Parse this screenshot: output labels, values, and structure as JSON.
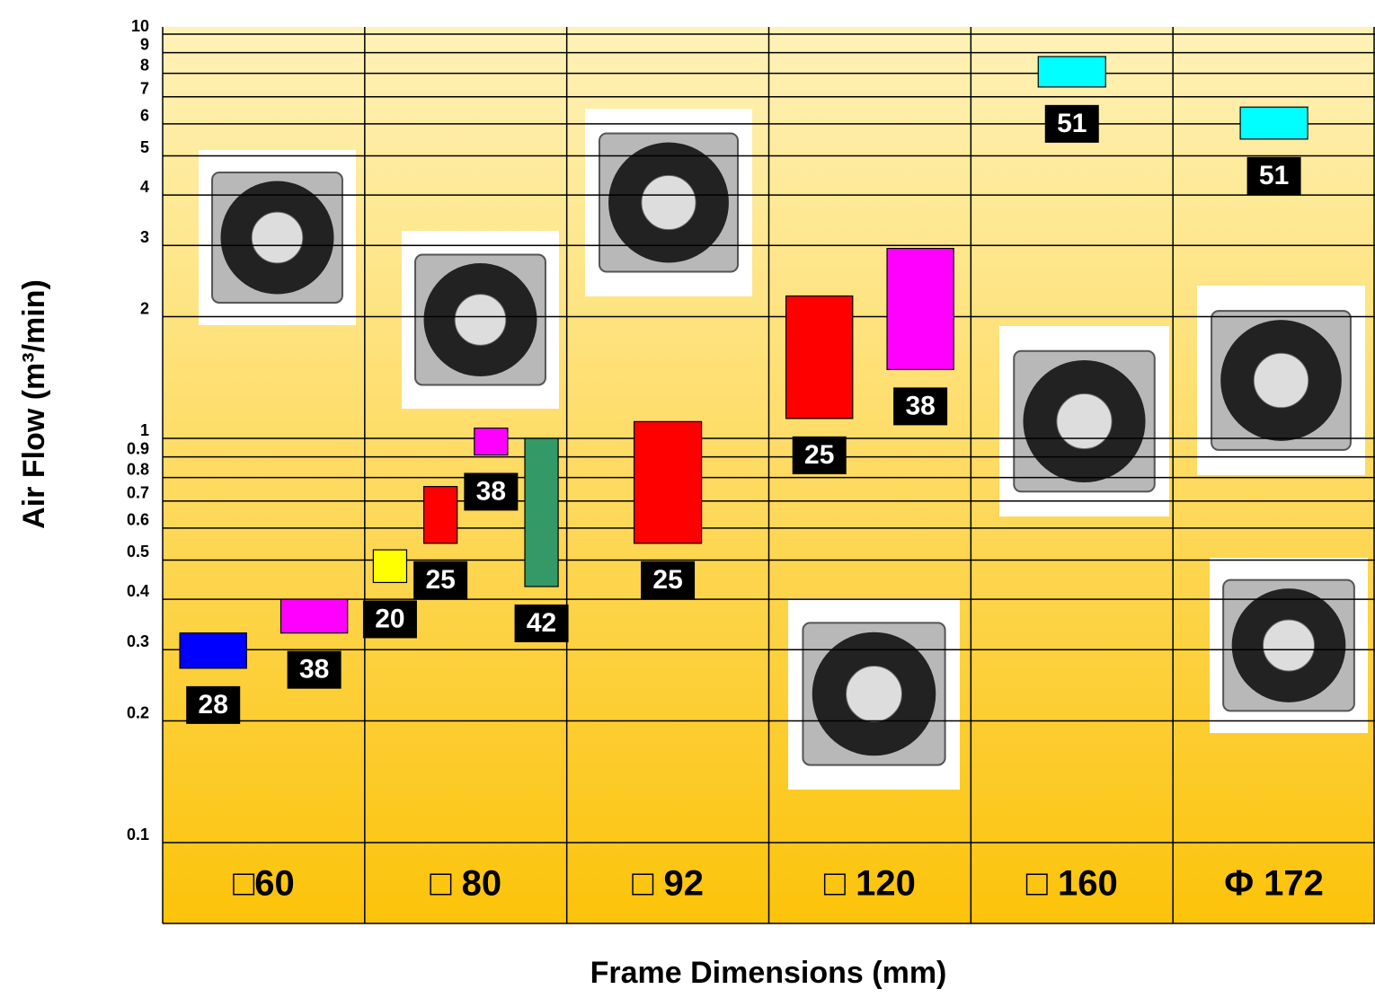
{
  "chart_data": {
    "type": "range-bar",
    "y_label": "Air Flow (m³/min)",
    "x_label": "Frame Dimensions (mm)",
    "log_scale": true,
    "grid": true,
    "ylim": [
      0.1,
      10
    ],
    "yticks": [
      0.1,
      0.2,
      0.3,
      0.4,
      0.5,
      0.6,
      0.7,
      0.8,
      0.9,
      1,
      2,
      3,
      4,
      5,
      6,
      7,
      8,
      9,
      10
    ],
    "groups": [
      {
        "name": "□60",
        "bars": [
          {
            "low": 0.27,
            "high": 0.33,
            "color": "#0000ff",
            "label": 28
          },
          {
            "low": 0.33,
            "high": 0.4,
            "color": "#ff00ff",
            "label": 38
          }
        ]
      },
      {
        "name": "□ 80",
        "bars": [
          {
            "low": 0.44,
            "high": 0.53,
            "color": "#ffff00",
            "label": 20
          },
          {
            "low": 0.55,
            "high": 0.76,
            "color": "#ff0000",
            "label": 25
          },
          {
            "low": 0.91,
            "high": 1.06,
            "color": "#ff00ff",
            "label": 38
          },
          {
            "low": 0.43,
            "high": 1.0,
            "color": "#339966",
            "label": 42
          }
        ]
      },
      {
        "name": "□ 92",
        "bars": [
          {
            "low": 0.55,
            "high": 1.1,
            "color": "#ff0000",
            "label": 25
          }
        ]
      },
      {
        "name": "□ 120",
        "bars": [
          {
            "low": 1.12,
            "high": 2.25,
            "color": "#ff0000",
            "label": 25
          },
          {
            "low": 1.48,
            "high": 2.95,
            "color": "#ff00ff",
            "label": 38
          }
        ]
      },
      {
        "name": "□ 160",
        "bars": [
          {
            "low": 7.4,
            "high": 8.8,
            "color": "#00ffff",
            "label": 51
          }
        ]
      },
      {
        "name": "Φ 172",
        "bars": [
          {
            "low": 5.5,
            "high": 6.6,
            "color": "#00ffff",
            "label": 51
          }
        ]
      }
    ]
  }
}
